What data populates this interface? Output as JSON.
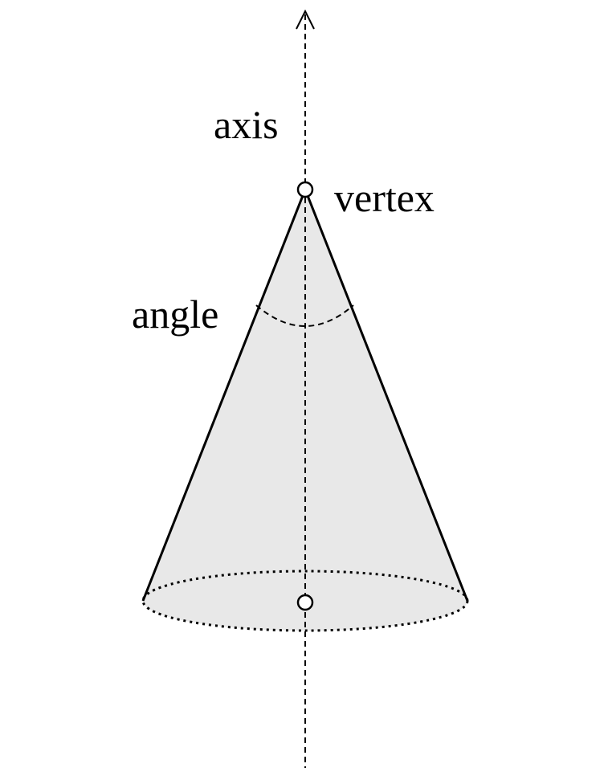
{
  "labels": {
    "axis": "axis",
    "vertex": "vertex",
    "angle": "angle"
  },
  "colors": {
    "cone_fill": "#e8e8e8",
    "stroke": "#000000",
    "background": "#ffffff"
  }
}
